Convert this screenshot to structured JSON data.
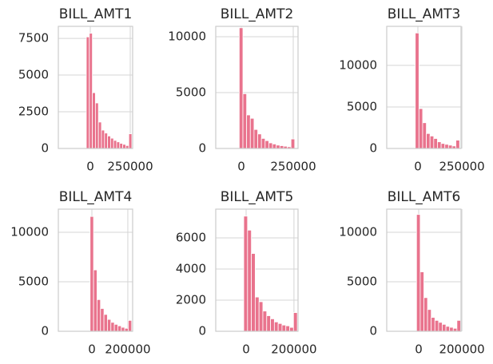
{
  "chart_data": [
    {
      "type": "histogram",
      "title": "BILL_AMT1",
      "color": "#e9738d",
      "grid": true,
      "bins": [
        -25000,
        -6000,
        13000,
        32000,
        51000,
        70000,
        89000,
        108000,
        127000,
        146000,
        165000,
        184000,
        203000,
        222000,
        241000,
        260000
      ],
      "values": [
        7600,
        7850,
        3800,
        3100,
        1800,
        1250,
        1050,
        850,
        700,
        550,
        450,
        350,
        280,
        200,
        1000
      ],
      "xlim": [
        -200000,
        265000
      ],
      "ylim": [
        0,
        8320
      ],
      "xticks": [
        0,
        250000
      ],
      "yticks": [
        0,
        2500,
        5000,
        7500
      ]
    },
    {
      "type": "histogram",
      "title": "BILL_AMT2",
      "color": "#e9738d",
      "grid": true,
      "bins": [
        -10000,
        7800,
        25600,
        43400,
        61200,
        79000,
        96800,
        114600,
        132400,
        150200,
        168000,
        185800,
        203600,
        221400,
        239200,
        257000
      ],
      "values": [
        10800,
        4900,
        3000,
        2700,
        1700,
        1300,
        900,
        700,
        500,
        400,
        300,
        250,
        200,
        150,
        850
      ],
      "xlim": [
        -123000,
        273000
      ],
      "ylim": [
        0,
        10930
      ],
      "xticks": [
        0,
        250000
      ],
      "yticks": [
        0,
        5000,
        10000
      ]
    },
    {
      "type": "histogram",
      "title": "BILL_AMT3",
      "color": "#e9738d",
      "grid": true,
      "bins": [
        -15000,
        6000,
        27000,
        48000,
        69000,
        90000,
        111000,
        132000,
        153000,
        174000,
        195000,
        216000,
        237000
      ],
      "values": [
        13900,
        4800,
        3100,
        1800,
        1500,
        1200,
        800,
        600,
        500,
        400,
        300,
        1000
      ],
      "xlim": [
        -177000,
        245000
      ],
      "ylim": [
        0,
        14700
      ],
      "xticks": [
        0,
        250000
      ],
      "yticks": [
        0,
        5000,
        10000
      ]
    },
    {
      "type": "histogram",
      "title": "BILL_AMT4",
      "color": "#e9738d",
      "grid": true,
      "bins": [
        -10000,
        9300,
        28600,
        47900,
        67200,
        86500,
        105800,
        125100,
        144400,
        163700,
        183000,
        202300,
        221600
      ],
      "values": [
        11600,
        6200,
        3200,
        2300,
        1700,
        1200,
        900,
        700,
        550,
        400,
        300,
        1100
      ],
      "xlim": [
        -187000,
        227000
      ],
      "ylim": [
        0,
        12340
      ],
      "xticks": [
        0,
        200000
      ],
      "yticks": [
        0,
        5000,
        10000
      ]
    },
    {
      "type": "histogram",
      "title": "BILL_AMT5",
      "color": "#e9738d",
      "grid": true,
      "bins": [
        -10000,
        6000,
        22000,
        38000,
        54000,
        70000,
        86000,
        102000,
        118000,
        134000,
        150000,
        166000,
        182000,
        198000,
        214000
      ],
      "values": [
        7400,
        6500,
        5000,
        2200,
        1900,
        1300,
        1000,
        800,
        600,
        500,
        400,
        350,
        250,
        1200
      ],
      "xlim": [
        -127000,
        217000
      ],
      "ylim": [
        0,
        7850
      ],
      "xticks": [
        0,
        200000
      ],
      "yticks": [
        0,
        2000,
        4000,
        6000
      ]
    },
    {
      "type": "histogram",
      "title": "BILL_AMT6",
      "color": "#e9738d",
      "grid": true,
      "bins": [
        -10000,
        7000,
        24000,
        41000,
        58000,
        75000,
        92000,
        109000,
        126000,
        143000,
        160000,
        177000,
        194000
      ],
      "values": [
        11800,
        6000,
        3400,
        2200,
        1400,
        1100,
        900,
        700,
        500,
        400,
        300,
        1100
      ],
      "xlim": [
        -148000,
        196000
      ],
      "ylim": [
        0,
        12340
      ],
      "xticks": [
        0,
        200000
      ],
      "yticks": [
        0,
        5000,
        10000
      ]
    }
  ]
}
